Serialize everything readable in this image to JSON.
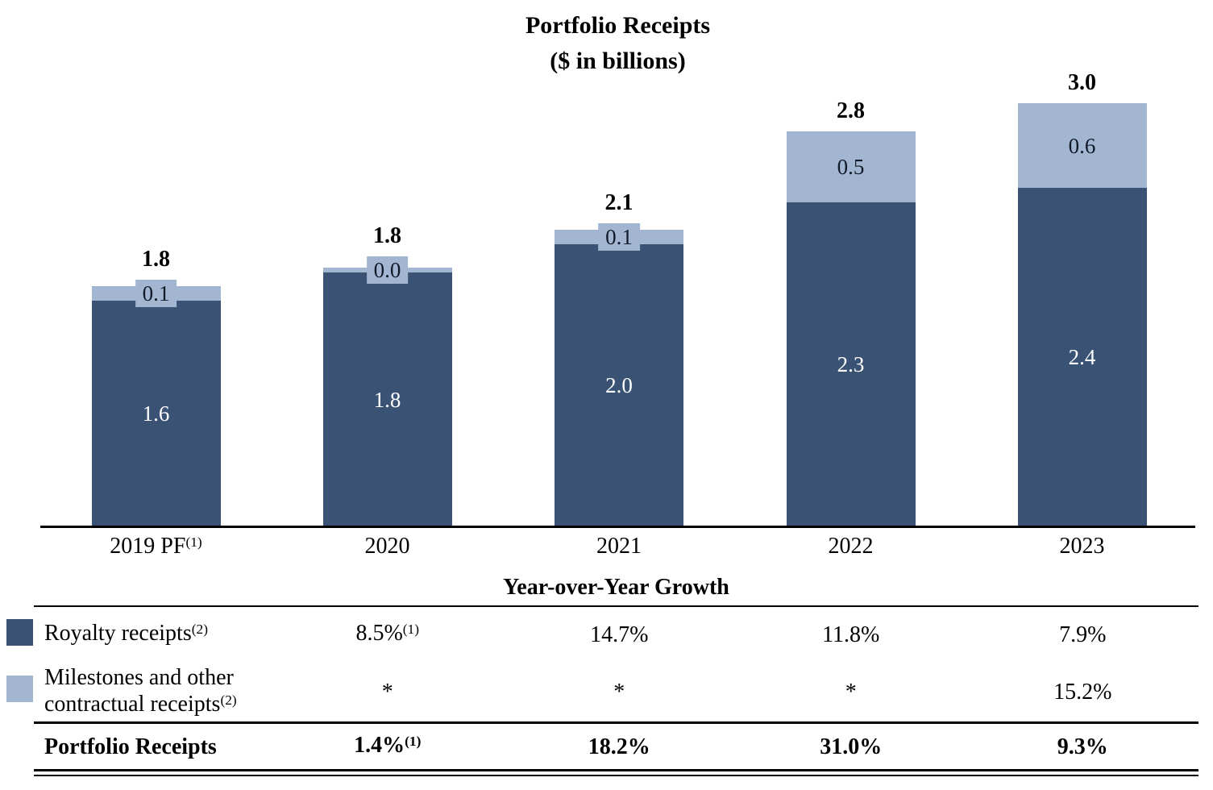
{
  "chart_data": {
    "type": "bar",
    "stacked": true,
    "title": "Portfolio Receipts",
    "subtitle": "($ in billions)",
    "categories": [
      {
        "label": "2019 PF",
        "sup": "(1)"
      },
      {
        "label": "2020",
        "sup": ""
      },
      {
        "label": "2021",
        "sup": ""
      },
      {
        "label": "2022",
        "sup": ""
      },
      {
        "label": "2023",
        "sup": ""
      }
    ],
    "series": [
      {
        "name": "Royalty receipts",
        "name_sup": "(2)",
        "color": "#3a5273",
        "label_color": "#ffffff",
        "values": [
          1.6,
          1.8,
          2.0,
          2.3,
          2.4
        ],
        "value_labels": [
          "1.6",
          "1.8",
          "2.0",
          "2.3",
          "2.4"
        ]
      },
      {
        "name": "Milestones and other contractual receipts",
        "name_sup": "(2)",
        "color": "#a3b6d1",
        "label_color": "#111a28",
        "values": [
          0.1,
          0.0,
          0.1,
          0.5,
          0.6
        ],
        "value_labels": [
          "0.1",
          "0.0",
          "0.1",
          "0.5",
          "0.6"
        ]
      }
    ],
    "totals": [
      "1.8",
      "1.8",
      "2.1",
      "2.8",
      "3.0"
    ],
    "ylim": [
      0,
      3.2
    ],
    "grid": false,
    "axis_color": "#000000"
  },
  "growth_table": {
    "heading": "Year-over-Year Growth",
    "rows": [
      {
        "label": "Royalty receipts",
        "label_sup": "(2)",
        "bold": false,
        "values": [
          {
            "v": "8.5%",
            "sup": "(1)"
          },
          {
            "v": "14.7%",
            "sup": ""
          },
          {
            "v": "11.8%",
            "sup": ""
          },
          {
            "v": "7.9%",
            "sup": ""
          }
        ]
      },
      {
        "label": "Milestones and other contractual receipts",
        "label_sup": "(2)",
        "bold": false,
        "values": [
          {
            "v": "*",
            "sup": ""
          },
          {
            "v": "*",
            "sup": ""
          },
          {
            "v": "*",
            "sup": ""
          },
          {
            "v": "15.2%",
            "sup": ""
          }
        ]
      },
      {
        "label": "Portfolio Receipts",
        "label_sup": "",
        "bold": true,
        "values": [
          {
            "v": "1.4%",
            "sup": "(1)"
          },
          {
            "v": "18.2%",
            "sup": ""
          },
          {
            "v": "31.0%",
            "sup": ""
          },
          {
            "v": "9.3%",
            "sup": ""
          }
        ]
      }
    ]
  }
}
